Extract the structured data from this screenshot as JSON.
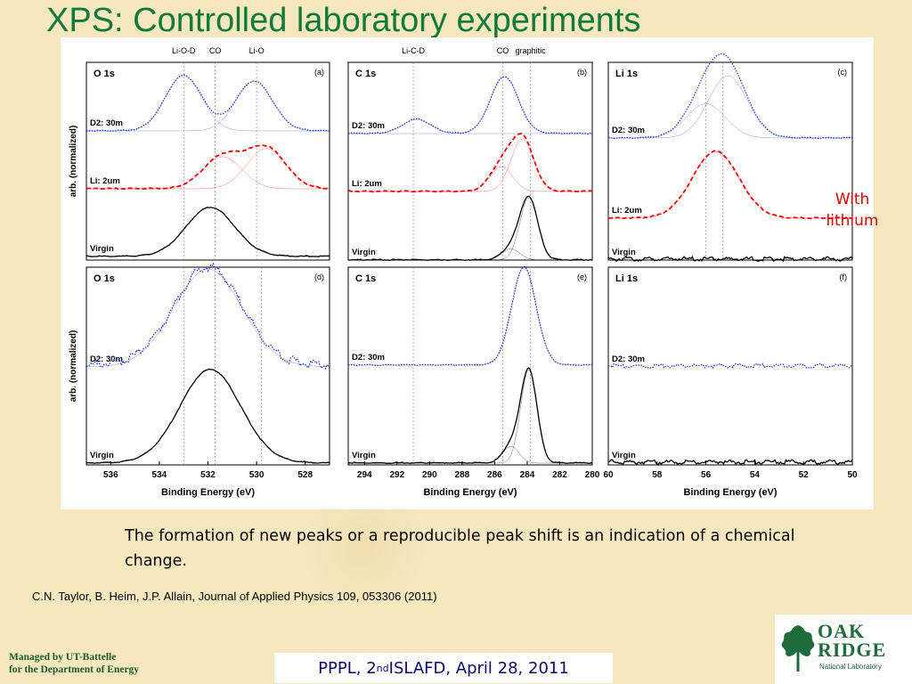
{
  "slide": {
    "title": "XPS: Controlled laboratory experiments",
    "annotation": "With lithium",
    "caption": "The formation of new peaks or a reproducible peak shift is an indication of a chemical change.",
    "citation": "C.N. Taylor, B. Heim, J.P. Allain, Journal of Applied Physics 109, 053306 (2011)",
    "managed_line1": "Managed by UT-Battelle",
    "managed_line2": "for the Department of Energy",
    "footer_pre": "PPPL, 2",
    "footer_sup": "nd",
    "footer_post": " ISLAFD, April 28, 2011",
    "logo_line1": "OAK",
    "logo_line2": "RIDGE",
    "logo_line3": "National Laboratory",
    "colors": {
      "title": "#0f7a3a",
      "lithium_trace": "#ff0000",
      "deuterium_trace": "#2a3bd6",
      "virgin_trace": "#000000",
      "footer_text": "#0a0a6e"
    }
  },
  "chart_data": [
    {
      "type": "line",
      "panel": "(a)",
      "core_level": "O 1s",
      "ylabel": "arb. (normalized)",
      "xlim": [
        537,
        527
      ],
      "xticks": [],
      "peak_markers": [
        {
          "x": 533,
          "label": "Li-O-D"
        },
        {
          "x": 531.7,
          "label": "CO"
        },
        {
          "x": 530.0,
          "label": "Li-O"
        }
      ],
      "series": [
        {
          "name": "D2: 30m",
          "color": "#2a3bd6",
          "peaks": [
            [
              533.0,
              1.0
            ],
            [
              530.1,
              0.9
            ]
          ],
          "width": 0.75
        },
        {
          "name": "Li: 2um",
          "color": "#ff0000",
          "peaks": [
            [
              531.4,
              0.62
            ],
            [
              529.6,
              0.78
            ]
          ],
          "width": 0.8
        },
        {
          "name": "Virgin",
          "color": "#000000",
          "peaks": [
            [
              531.9,
              1.0
            ]
          ],
          "width": 1.0
        }
      ]
    },
    {
      "type": "line",
      "panel": "(b)",
      "core_level": "C 1s",
      "xlim": [
        295,
        280
      ],
      "xticks": [],
      "peak_markers": [
        {
          "x": 291,
          "label": "Li-C-D"
        },
        {
          "x": 285.5,
          "label": "CO"
        },
        {
          "x": 283.8,
          "label": "graphitic"
        }
      ],
      "series": [
        {
          "name": "D2: 30m",
          "color": "#2a3bd6",
          "peaks": [
            [
              290.8,
              0.25
            ],
            [
              285.4,
              1.0
            ]
          ],
          "width": 0.85
        },
        {
          "name": "Li: 2um",
          "color": "#ff0000",
          "peaks": [
            [
              285.6,
              0.45
            ],
            [
              284.3,
              0.95
            ]
          ],
          "width": 0.7
        },
        {
          "name": "Virgin",
          "color": "#000000",
          "peaks": [
            [
              285.0,
              0.18
            ],
            [
              283.9,
              1.0
            ]
          ],
          "width": 0.55
        }
      ]
    },
    {
      "type": "line",
      "panel": "(c)",
      "core_level": "Li 1s",
      "xlim": [
        60,
        50
      ],
      "xticks": [],
      "peak_markers": [
        {
          "x": 56.0
        },
        {
          "x": 55.3
        }
      ],
      "series": [
        {
          "name": "D2: 30m",
          "color": "#2a3bd6",
          "peaks": [
            [
              56.0,
              0.55
            ],
            [
              55.1,
              1.0
            ]
          ],
          "width": 0.8
        },
        {
          "name": "Li: 2um",
          "color": "#ff0000",
          "peaks": [
            [
              55.6,
              1.0
            ]
          ],
          "width": 0.95
        },
        {
          "name": "Virgin",
          "color": "#000000",
          "peaks": [],
          "width": 1.0
        }
      ]
    },
    {
      "type": "line",
      "panel": "(d)",
      "core_level": "O 1s",
      "ylabel": "arb. (normalized)",
      "xlabel": "Binding Energy (eV)",
      "xlim": [
        537,
        527
      ],
      "xticks": [
        536,
        534,
        532,
        530,
        528
      ],
      "peak_markers": [
        {
          "x": 533.0
        },
        {
          "x": 531.7
        },
        {
          "x": 529.8
        }
      ],
      "series": [
        {
          "name": "D2: 30m",
          "color": "#2a3bd6",
          "peaks": [
            [
              532.0,
              1.0
            ]
          ],
          "width": 1.4
        },
        {
          "name": "Virgin",
          "color": "#000000",
          "peaks": [
            [
              531.9,
              1.0
            ]
          ],
          "width": 1.25
        }
      ]
    },
    {
      "type": "line",
      "panel": "(e)",
      "core_level": "C 1s",
      "xlabel": "Binding Energy (eV)",
      "xlim": [
        295,
        280
      ],
      "xticks": [
        294,
        292,
        290,
        288,
        286,
        284,
        282,
        280
      ],
      "peak_markers": [
        {
          "x": 291
        },
        {
          "x": 285.5
        },
        {
          "x": 283.8
        }
      ],
      "series": [
        {
          "name": "D2: 30m",
          "color": "#2a3bd6",
          "peaks": [
            [
              284.2,
              1.0
            ]
          ],
          "width": 0.75
        },
        {
          "name": "Virgin",
          "color": "#000000",
          "peaks": [
            [
              285.0,
              0.18
            ],
            [
              283.9,
              1.0
            ]
          ],
          "width": 0.5
        }
      ]
    },
    {
      "type": "line",
      "panel": "(f)",
      "core_level": "Li 1s",
      "xlabel": "Binding Energy (eV)",
      "xlim": [
        60,
        50
      ],
      "xticks": [
        60,
        58,
        56,
        54,
        52,
        50
      ],
      "peak_markers": [],
      "series": [
        {
          "name": "D2: 30m",
          "color": "#2a3bd6",
          "peaks": [],
          "width": 1.0
        },
        {
          "name": "Virgin",
          "color": "#000000",
          "peaks": [],
          "width": 1.0
        }
      ]
    }
  ]
}
